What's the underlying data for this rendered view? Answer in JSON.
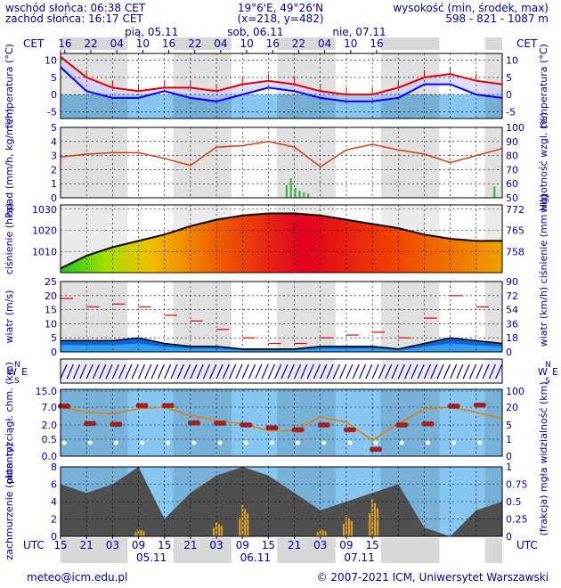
{
  "header": {
    "sunrise": "wschód słońca: 06:38 CET",
    "sunset": "zachód słońca: 16:17 CET",
    "coords": "19°6'E, 49°26'N",
    "grid": "(x=218, y=482)",
    "height_title": "wysokość (min, środek, max)",
    "height_values": "598 - 821 - 1087 m"
  },
  "axes": {
    "top_tz": "CET",
    "bottom_tz": "UTC",
    "top_hours": [
      "16",
      "22",
      "04",
      "10",
      "16",
      "22",
      "04",
      "10",
      "16",
      "22",
      "04",
      "10",
      "16"
    ],
    "top_days": [
      "pią, 05.11",
      "sob, 06.11",
      "nie, 07.11"
    ],
    "bottom_hours": [
      "15",
      "21",
      "03",
      "09",
      "15",
      "21",
      "03",
      "09",
      "15",
      "21",
      "03",
      "09",
      "15"
    ],
    "bottom_days": [
      "05.11",
      "06.11",
      "07.11"
    ]
  },
  "panels": {
    "temperature": {
      "left": "temperatura (°C)",
      "right": "temperatura (°C)",
      "ticks": [
        "10",
        "5",
        "0",
        "-5"
      ]
    },
    "precip": {
      "left": "opad (mm/h, kg/m²/h)",
      "right": "wilgotność wzgl. (%)",
      "ticks_left": [
        "5",
        "4",
        "3",
        "2",
        "1",
        "0"
      ],
      "ticks_right": [
        "100",
        "90",
        "80",
        "70",
        "60",
        "50"
      ]
    },
    "pressure": {
      "left": "ciśnienie (hPa)",
      "right": "ciśnienie (mm Hg)",
      "ticks_left": [
        "1030",
        "1020",
        "1010"
      ],
      "ticks_right": [
        "772",
        "765",
        "758"
      ]
    },
    "wind": {
      "left": "wiatr (m/s)",
      "right": "wiatr (km/h)",
      "ticks_left": [
        "25",
        "20",
        "15",
        "10",
        "5",
        "0"
      ],
      "ticks_right": [
        "90",
        "72",
        "54",
        "36",
        "18",
        "0"
      ]
    },
    "direction": {
      "left_w": "W",
      "left_n": "N",
      "left_s": "S",
      "left_e": "E",
      "right_w": "W",
      "right_n": "N",
      "right_s": "S",
      "right_e": "E"
    },
    "clouds_base": {
      "left": "pion. rozciągł. chm. (km)",
      "right": "widzialność (km)",
      "ticks_left": [
        "15.0",
        "7.0",
        "2.0",
        "0.5",
        "0.0"
      ],
      "ticks_right": [
        "100",
        "20",
        "5",
        "1",
        "0"
      ]
    },
    "cloud_cover": {
      "left": "zachmurzenie (oktanty)",
      "right": "(frakcja) mgła",
      "ticks_left": [
        "8",
        "6",
        "4",
        "2",
        "0"
      ],
      "ticks_right": [
        "1",
        "0.75",
        "0.5",
        "0.25",
        "0"
      ]
    }
  },
  "footer": {
    "email": "meteo@icm.edu.pl",
    "copyright": "© 2007-2021 ICM, Uniwersytet Warszawski"
  },
  "colors": {
    "text": "#0000a0",
    "sky": "#86c6f0",
    "night": "#d8d8d8",
    "temp_max": "#e00000",
    "temp_min": "#0000ff",
    "humidity": "#d04010",
    "rain": "#30b030",
    "snow": "#e0a020",
    "cloud": "#505050"
  },
  "chart_data": [
    {
      "type": "line",
      "title": "temperatura",
      "x_start": "2021-11-05 15:00 UTC",
      "step_hours": 6,
      "series": [
        {
          "values": [
            11,
            5,
            2,
            1,
            2,
            2,
            1,
            3,
            4,
            3,
            1,
            0,
            0,
            2,
            5,
            6,
            4,
            3
          ]
        },
        {
          "values": [
            8,
            1,
            -1,
            -1,
            1,
            -1,
            -2,
            0,
            2,
            1,
            -1,
            -2,
            -2,
            -1,
            3,
            3,
            0,
            -1
          ]
        }
      ],
      "ylim": [
        -7,
        12
      ]
    },
    {
      "type": "line",
      "title": "wilgotność",
      "series": [
        {
          "values": [
            79,
            81,
            82,
            82,
            78,
            73,
            86,
            87,
            90,
            86,
            72,
            84,
            88,
            84,
            81,
            75,
            80,
            85
          ]
        }
      ],
      "ylim": [
        50,
        100
      ]
    },
    {
      "type": "area",
      "title": "ciśnienie",
      "series": [
        {
          "values": [
            1002,
            1008,
            1012,
            1015,
            1018,
            1022,
            1025,
            1027,
            1028,
            1028,
            1027,
            1025,
            1023,
            1021,
            1018,
            1016,
            1015,
            1015
          ]
        }
      ],
      "ylim": [
        1000,
        1032
      ]
    },
    {
      "type": "line",
      "title": "wiatr",
      "series": [
        {
          "values": [
            19,
            16,
            17,
            16,
            13,
            11,
            8,
            5,
            3,
            3,
            5,
            6,
            7,
            5,
            12,
            20,
            16,
            15
          ]
        },
        {
          "values": [
            4,
            4,
            4,
            5,
            3,
            2,
            2,
            1,
            1,
            1,
            2,
            2,
            2,
            1,
            3,
            5,
            4,
            3
          ]
        }
      ],
      "ylim": [
        0,
        25
      ]
    },
    {
      "type": "scatter",
      "title": "pion. rozciągł. chm.",
      "series": [
        {
          "values": [
            7.5,
            2.4,
            2.2,
            7.8,
            7.8,
            2.6,
            2.5,
            2.0,
            1.7,
            1.5,
            2.0,
            1.5,
            0.2,
            2.0,
            2.3,
            7.5,
            8.0,
            8.0
          ]
        },
        {
          "values": [
            15,
            12,
            11,
            14,
            15,
            10,
            7,
            5,
            3,
            3,
            9,
            6,
            1,
            5,
            14,
            15,
            12,
            8
          ]
        }
      ],
      "ylim": [
        0,
        15
      ]
    },
    {
      "type": "area",
      "title": "zachmurzenie",
      "series": [
        {
          "values": [
            6,
            5,
            6,
            8,
            2,
            5,
            7,
            8,
            7,
            5,
            3,
            4,
            5,
            6,
            1,
            0,
            3,
            4
          ]
        },
        {
          "values": [
            0,
            0,
            0,
            0.1,
            0,
            0,
            0.2,
            0.45,
            0,
            0,
            0.1,
            0.3,
            0.55,
            0,
            0,
            0,
            0,
            0
          ]
        }
      ],
      "ylim": [
        0,
        8
      ]
    }
  ]
}
